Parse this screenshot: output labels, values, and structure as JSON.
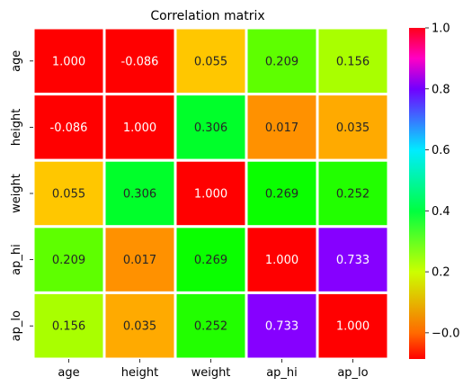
{
  "chart_data": {
    "type": "heatmap",
    "title": "Correlation matrix",
    "xlabel": "",
    "ylabel": "",
    "x_categories": [
      "age",
      "height",
      "weight",
      "ap_hi",
      "ap_lo"
    ],
    "y_categories": [
      "age",
      "height",
      "weight",
      "ap_hi",
      "ap_lo"
    ],
    "values": [
      [
        1.0,
        -0.086,
        0.055,
        0.209,
        0.156
      ],
      [
        -0.086,
        1.0,
        0.306,
        0.017,
        0.035
      ],
      [
        0.055,
        0.306,
        1.0,
        0.269,
        0.252
      ],
      [
        0.209,
        0.017,
        0.269,
        1.0,
        0.733
      ],
      [
        0.156,
        0.035,
        0.252,
        0.733,
        1.0
      ]
    ],
    "annotations": [
      [
        "1.000",
        "-0.086",
        "0.055",
        "0.209",
        "0.156"
      ],
      [
        "-0.086",
        "1.000",
        "0.306",
        "0.017",
        "0.035"
      ],
      [
        "0.055",
        "0.306",
        "1.000",
        "0.269",
        "0.252"
      ],
      [
        "0.209",
        "0.017",
        "0.269",
        "1.000",
        "0.733"
      ],
      [
        "0.156",
        "0.035",
        "0.252",
        "0.733",
        "1.000"
      ]
    ],
    "colormap": "hsv",
    "color_range": [
      -0.086,
      1.0
    ],
    "colorbar": {
      "ticks": [
        -0.0,
        0.2,
        0.4,
        0.6,
        0.8,
        1.0
      ],
      "tick_labels": [
        "−0.0",
        "0.2",
        "0.4",
        "0.6",
        "0.8",
        "1.0"
      ],
      "placement": "right"
    },
    "cell_border_color": "#ffffff",
    "annotation_text_colors": {
      "light": "#ffffff",
      "dark": "#262626"
    }
  }
}
